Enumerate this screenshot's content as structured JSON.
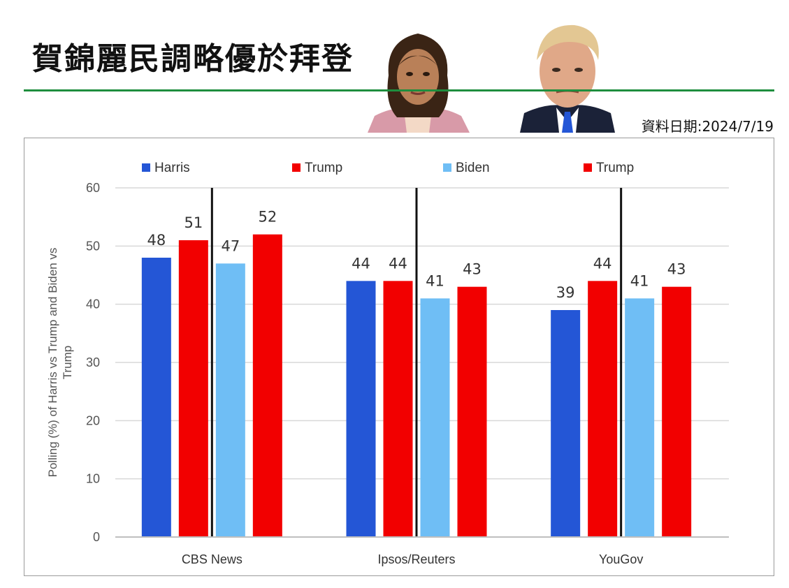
{
  "header": {
    "title": "賀錦麗民調略優於拜登",
    "date_note": "資料日期:2024/7/19"
  },
  "colors": {
    "harris": "#2456d6",
    "trump": "#f20000",
    "biden": "#6fbef5",
    "rule": "#1e8e3e"
  },
  "chart_data": {
    "type": "bar",
    "categories": [
      "CBS News",
      "Ipsos/Reuters",
      "YouGov"
    ],
    "series": [
      {
        "name": "Harris",
        "color": "#2456d6",
        "values": [
          48,
          44,
          39
        ]
      },
      {
        "name": "Trump",
        "color": "#f20000",
        "values": [
          51,
          44,
          44
        ]
      },
      {
        "name": "Biden",
        "color": "#6fbef5",
        "values": [
          47,
          41,
          41
        ]
      },
      {
        "name": "Trump",
        "color": "#f20000",
        "values": [
          52,
          43,
          43
        ]
      }
    ],
    "ylabel": "Polling (%) of Harris vs Trump and Biden vs Trump",
    "ylim": [
      0,
      60
    ],
    "yticks": [
      0,
      10,
      20,
      30,
      40,
      50,
      60
    ],
    "grid": true,
    "legend_position": "top",
    "divider_after_series": 1
  }
}
